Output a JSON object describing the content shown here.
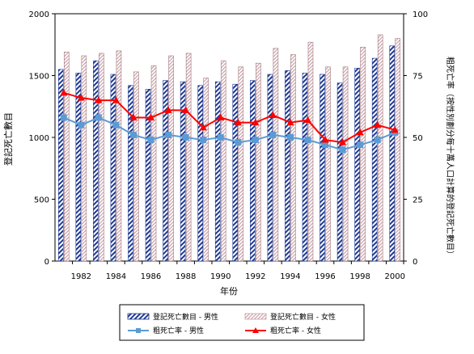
{
  "chart_data": {
    "type": "bar",
    "categories": [
      "1981",
      "1982",
      "1983",
      "1984",
      "1985",
      "1986",
      "1987",
      "1988",
      "1989",
      "1990",
      "1991",
      "1992",
      "1993",
      "1994",
      "1995",
      "1996",
      "1997",
      "1998",
      "1999",
      "2000"
    ],
    "x_tick_labels": [
      "1982",
      "1984",
      "1986",
      "1988",
      "1990",
      "1992",
      "1994",
      "1996",
      "1998",
      "2000"
    ],
    "xlabel": "年份",
    "ylabel_left": "登記死亡數目",
    "ylabel_right": "粗死亡率（按性別劃分每十萬人口計算的登記死亡數目）",
    "ylim_left": [
      0,
      2000
    ],
    "yticks_left": [
      "0",
      "500",
      "1000",
      "1500",
      "2000"
    ],
    "ylim_right": [
      0,
      100
    ],
    "yticks_right": [
      "0",
      "25",
      "50",
      "75",
      "100"
    ],
    "grid": false,
    "legend_position": "bottom",
    "series": [
      {
        "name": "登記死亡數目 - 男性",
        "type": "bar",
        "axis": "left",
        "color": "#1f3a93",
        "values": [
          1550,
          1520,
          1620,
          1510,
          1420,
          1390,
          1460,
          1450,
          1420,
          1450,
          1430,
          1460,
          1510,
          1540,
          1520,
          1510,
          1440,
          1560,
          1640,
          1740
        ]
      },
      {
        "name": "登記死亡數目 - 女性",
        "type": "bar",
        "axis": "left",
        "color": "#c9a0a8",
        "values": [
          1690,
          1660,
          1680,
          1700,
          1530,
          1580,
          1660,
          1680,
          1480,
          1620,
          1570,
          1600,
          1720,
          1670,
          1770,
          1570,
          1570,
          1730,
          1830,
          1800
        ]
      },
      {
        "name": "粗死亡率 - 男性",
        "type": "line",
        "axis": "right",
        "color": "#5b9bd5",
        "values": [
          58,
          55,
          58,
          55,
          51,
          49,
          51,
          50,
          49,
          50,
          48,
          49,
          51,
          50,
          49,
          47,
          45,
          47,
          49,
          52
        ]
      },
      {
        "name": "粗死亡率 - 女性",
        "type": "line",
        "axis": "right",
        "color": "#ff0000",
        "values": [
          68,
          66,
          65,
          65,
          58,
          58,
          61,
          61,
          54,
          58,
          56,
          56,
          59,
          56,
          57,
          49,
          48,
          52,
          55,
          53
        ]
      }
    ]
  }
}
